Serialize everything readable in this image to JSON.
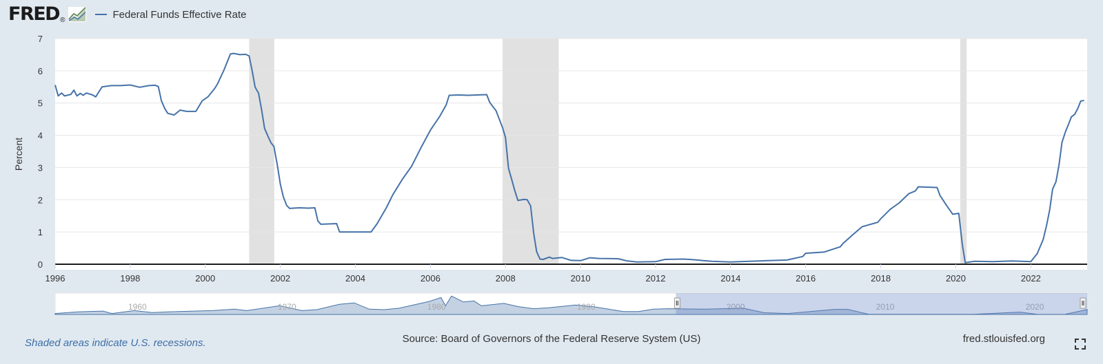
{
  "header": {
    "logo_text": "FRED",
    "logo_mark": "®",
    "legend_label": "Federal Funds Effective Rate",
    "series_color": "#4572a7"
  },
  "chart_data": {
    "type": "line",
    "title": "",
    "ylabel": "Percent",
    "xlabel": "",
    "xlim": [
      1996.0,
      2023.5
    ],
    "ylim": [
      0,
      7
    ],
    "yticks": [
      0,
      1,
      2,
      3,
      4,
      5,
      6,
      7
    ],
    "xticks": [
      1996,
      1998,
      2000,
      2002,
      2004,
      2006,
      2008,
      2010,
      2012,
      2014,
      2016,
      2018,
      2020,
      2022
    ],
    "grid": true,
    "legend_position": "top-left",
    "recessions": [
      [
        2001.17,
        2001.84
      ],
      [
        2007.92,
        2009.42
      ],
      [
        2020.12,
        2020.29
      ]
    ],
    "series": [
      {
        "name": "Federal Funds Effective Rate",
        "color": "#4572a7",
        "points": [
          [
            1996.0,
            5.56
          ],
          [
            1996.08,
            5.22
          ],
          [
            1996.17,
            5.31
          ],
          [
            1996.25,
            5.22
          ],
          [
            1996.42,
            5.27
          ],
          [
            1996.5,
            5.4
          ],
          [
            1996.58,
            5.22
          ],
          [
            1996.67,
            5.3
          ],
          [
            1996.75,
            5.24
          ],
          [
            1996.83,
            5.31
          ],
          [
            1997.0,
            5.25
          ],
          [
            1997.08,
            5.19
          ],
          [
            1997.25,
            5.5
          ],
          [
            1997.5,
            5.54
          ],
          [
            1997.75,
            5.54
          ],
          [
            1998.0,
            5.56
          ],
          [
            1998.25,
            5.49
          ],
          [
            1998.5,
            5.54
          ],
          [
            1998.67,
            5.55
          ],
          [
            1998.75,
            5.51
          ],
          [
            1998.83,
            5.07
          ],
          [
            1998.92,
            4.83
          ],
          [
            1999.0,
            4.68
          ],
          [
            1999.17,
            4.63
          ],
          [
            1999.33,
            4.78
          ],
          [
            1999.5,
            4.74
          ],
          [
            1999.75,
            4.74
          ],
          [
            1999.92,
            5.07
          ],
          [
            2000.08,
            5.2
          ],
          [
            2000.25,
            5.45
          ],
          [
            2000.33,
            5.6
          ],
          [
            2000.5,
            6.03
          ],
          [
            2000.67,
            6.52
          ],
          [
            2000.75,
            6.54
          ],
          [
            2000.92,
            6.5
          ],
          [
            2001.08,
            6.51
          ],
          [
            2001.17,
            6.46
          ],
          [
            2001.25,
            6.0
          ],
          [
            2001.33,
            5.49
          ],
          [
            2001.42,
            5.31
          ],
          [
            2001.5,
            4.8
          ],
          [
            2001.58,
            4.21
          ],
          [
            2001.67,
            3.97
          ],
          [
            2001.75,
            3.77
          ],
          [
            2001.83,
            3.65
          ],
          [
            2001.92,
            3.07
          ],
          [
            2002.0,
            2.49
          ],
          [
            2002.08,
            2.09
          ],
          [
            2002.17,
            1.82
          ],
          [
            2002.25,
            1.73
          ],
          [
            2002.5,
            1.75
          ],
          [
            2002.75,
            1.74
          ],
          [
            2002.92,
            1.75
          ],
          [
            2003.0,
            1.34
          ],
          [
            2003.08,
            1.24
          ],
          [
            2003.5,
            1.26
          ],
          [
            2003.58,
            1.0
          ],
          [
            2004.0,
            1.0
          ],
          [
            2004.42,
            1.0
          ],
          [
            2004.58,
            1.26
          ],
          [
            2004.83,
            1.76
          ],
          [
            2005.0,
            2.16
          ],
          [
            2005.25,
            2.63
          ],
          [
            2005.5,
            3.04
          ],
          [
            2005.75,
            3.62
          ],
          [
            2006.0,
            4.16
          ],
          [
            2006.25,
            4.59
          ],
          [
            2006.42,
            4.94
          ],
          [
            2006.5,
            5.24
          ],
          [
            2006.75,
            5.25
          ],
          [
            2007.0,
            5.24
          ],
          [
            2007.25,
            5.25
          ],
          [
            2007.5,
            5.26
          ],
          [
            2007.58,
            5.02
          ],
          [
            2007.75,
            4.76
          ],
          [
            2007.92,
            4.24
          ],
          [
            2008.0,
            3.94
          ],
          [
            2008.08,
            2.98
          ],
          [
            2008.17,
            2.61
          ],
          [
            2008.25,
            2.28
          ],
          [
            2008.33,
            1.98
          ],
          [
            2008.5,
            2.01
          ],
          [
            2008.58,
            2.0
          ],
          [
            2008.67,
            1.81
          ],
          [
            2008.75,
            0.97
          ],
          [
            2008.83,
            0.39
          ],
          [
            2008.92,
            0.16
          ],
          [
            2009.0,
            0.15
          ],
          [
            2009.17,
            0.22
          ],
          [
            2009.25,
            0.18
          ],
          [
            2009.5,
            0.21
          ],
          [
            2009.75,
            0.12
          ],
          [
            2010.0,
            0.11
          ],
          [
            2010.25,
            0.2
          ],
          [
            2010.5,
            0.18
          ],
          [
            2011.0,
            0.17
          ],
          [
            2011.25,
            0.1
          ],
          [
            2011.5,
            0.07
          ],
          [
            2012.0,
            0.08
          ],
          [
            2012.25,
            0.15
          ],
          [
            2012.75,
            0.16
          ],
          [
            2013.0,
            0.14
          ],
          [
            2013.5,
            0.09
          ],
          [
            2014.0,
            0.07
          ],
          [
            2014.5,
            0.09
          ],
          [
            2015.0,
            0.11
          ],
          [
            2015.5,
            0.13
          ],
          [
            2015.92,
            0.24
          ],
          [
            2016.0,
            0.34
          ],
          [
            2016.5,
            0.38
          ],
          [
            2016.92,
            0.54
          ],
          [
            2017.0,
            0.65
          ],
          [
            2017.25,
            0.91
          ],
          [
            2017.5,
            1.16
          ],
          [
            2017.92,
            1.3
          ],
          [
            2018.0,
            1.41
          ],
          [
            2018.25,
            1.7
          ],
          [
            2018.5,
            1.91
          ],
          [
            2018.75,
            2.19
          ],
          [
            2018.92,
            2.27
          ],
          [
            2019.0,
            2.4
          ],
          [
            2019.5,
            2.38
          ],
          [
            2019.58,
            2.13
          ],
          [
            2019.75,
            1.83
          ],
          [
            2019.92,
            1.55
          ],
          [
            2020.08,
            1.58
          ],
          [
            2020.17,
            0.65
          ],
          [
            2020.25,
            0.05
          ],
          [
            2020.5,
            0.09
          ],
          [
            2021.0,
            0.08
          ],
          [
            2021.5,
            0.1
          ],
          [
            2022.0,
            0.08
          ],
          [
            2022.17,
            0.33
          ],
          [
            2022.33,
            0.77
          ],
          [
            2022.42,
            1.21
          ],
          [
            2022.5,
            1.68
          ],
          [
            2022.58,
            2.33
          ],
          [
            2022.67,
            2.56
          ],
          [
            2022.75,
            3.08
          ],
          [
            2022.83,
            3.78
          ],
          [
            2022.92,
            4.1
          ],
          [
            2023.0,
            4.33
          ],
          [
            2023.08,
            4.57
          ],
          [
            2023.17,
            4.65
          ],
          [
            2023.25,
            4.83
          ],
          [
            2023.33,
            5.06
          ],
          [
            2023.42,
            5.08
          ]
        ]
      }
    ]
  },
  "navigator": {
    "tick_labels": [
      "1960",
      "1970",
      "1980",
      "1990",
      "2000",
      "2010",
      "2020"
    ],
    "range_start": 1996,
    "range_end": 2023.5,
    "full_start": 1954.5,
    "full_end": 2023.5,
    "profile": [
      [
        1954.5,
        1.0
      ],
      [
        1956,
        2.7
      ],
      [
        1957.7,
        3.5
      ],
      [
        1958.3,
        1.0
      ],
      [
        1959.8,
        4.0
      ],
      [
        1961,
        2.0
      ],
      [
        1962,
        2.7
      ],
      [
        1965,
        4.0
      ],
      [
        1966.5,
        5.5
      ],
      [
        1967.3,
        4.0
      ],
      [
        1969.5,
        9.0
      ],
      [
        1971,
        4.0
      ],
      [
        1972,
        5.0
      ],
      [
        1973.5,
        10.5
      ],
      [
        1974.5,
        12.0
      ],
      [
        1975.5,
        5.5
      ],
      [
        1976.5,
        5.0
      ],
      [
        1977.5,
        6.5
      ],
      [
        1978.5,
        10.0
      ],
      [
        1979.5,
        13.5
      ],
      [
        1980.3,
        17.6
      ],
      [
        1980.6,
        9.0
      ],
      [
        1981.0,
        19.1
      ],
      [
        1981.8,
        13.0
      ],
      [
        1982.5,
        14.0
      ],
      [
        1983,
        9.0
      ],
      [
        1984.5,
        11.5
      ],
      [
        1985.5,
        8.0
      ],
      [
        1986.5,
        6.0
      ],
      [
        1987.5,
        7.0
      ],
      [
        1989.3,
        9.8
      ],
      [
        1990.5,
        8.0
      ],
      [
        1991.5,
        5.5
      ],
      [
        1992.5,
        3.0
      ],
      [
        1993.5,
        3.0
      ],
      [
        1994.5,
        5.5
      ],
      [
        1995.5,
        6.0
      ],
      [
        1998,
        5.5
      ],
      [
        2000.5,
        6.5
      ],
      [
        2001.9,
        1.8
      ],
      [
        2003.5,
        1.0
      ],
      [
        2006.6,
        5.25
      ],
      [
        2007.5,
        5.25
      ],
      [
        2008.9,
        0.2
      ],
      [
        2015.9,
        0.2
      ],
      [
        2019,
        2.4
      ],
      [
        2020.2,
        0.1
      ],
      [
        2022,
        0.1
      ],
      [
        2023.5,
        5.1
      ]
    ]
  },
  "footer": {
    "note": "Shaded areas indicate U.S. recessions.",
    "source": "Source: Board of Governors of the Federal Reserve System (US)",
    "site": "fred.stlouisfed.org"
  },
  "icons": {
    "logo_graph": "fred-graph-icon",
    "fullscreen": "fullscreen-icon"
  }
}
